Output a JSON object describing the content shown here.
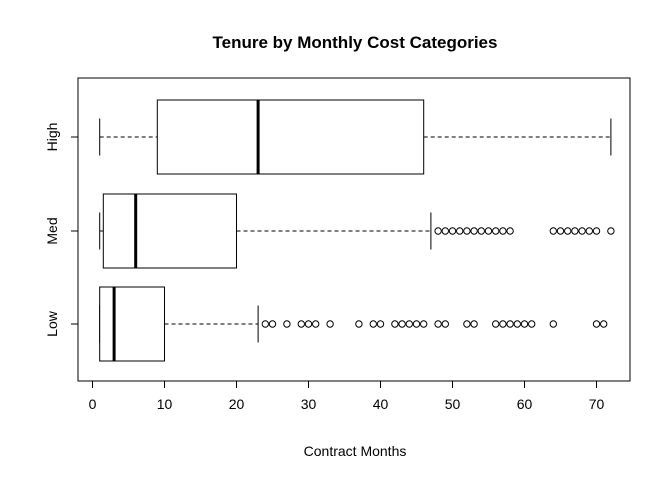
{
  "chart_data": {
    "type": "boxplot",
    "orientation": "horizontal",
    "title": "Tenure by Monthly Cost Categories",
    "xlabel": "Contract Months",
    "ylabel": "",
    "xlim": [
      0,
      72
    ],
    "x_ticks": [
      0,
      10,
      20,
      30,
      40,
      50,
      60,
      70
    ],
    "categories": [
      "Low",
      "Med",
      "High"
    ],
    "series": [
      {
        "category": "Low",
        "whisker_low": 1,
        "q1": 1,
        "median": 3,
        "q3": 10,
        "whisker_high": 23,
        "outliers": [
          24,
          25,
          27,
          29,
          30,
          31,
          33,
          37,
          39,
          40,
          42,
          43,
          44,
          45,
          46,
          48,
          49,
          52,
          53,
          56,
          57,
          58,
          59,
          60,
          61,
          64,
          70,
          71
        ]
      },
      {
        "category": "Med",
        "whisker_low": 1,
        "q1": 1.5,
        "median": 6,
        "q3": 20,
        "whisker_high": 47,
        "outliers": [
          48,
          49,
          50,
          51,
          52,
          53,
          54,
          55,
          56,
          57,
          58,
          64,
          65,
          66,
          67,
          68,
          69,
          70,
          72
        ]
      },
      {
        "category": "High",
        "whisker_low": 1,
        "q1": 9,
        "median": 23,
        "q3": 46,
        "whisker_high": 72,
        "outliers": []
      }
    ],
    "grid": false,
    "legend": "none"
  }
}
